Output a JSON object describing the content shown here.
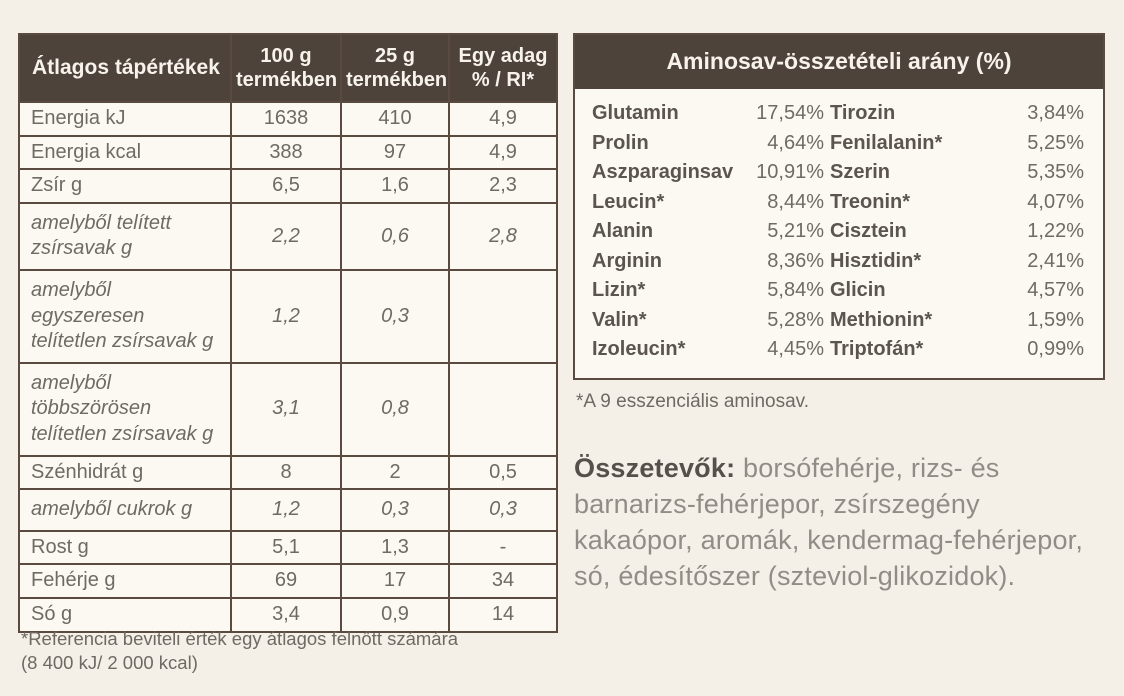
{
  "colors": {
    "page_background": "#f5f0e7",
    "header_brown": "#4e433b",
    "border_brown": "#5a4a40",
    "cell_background": "#fcf9f3",
    "text_gray": "#6f6a63",
    "header_text": "#f7f3ec"
  },
  "nutrition_table": {
    "header": {
      "title": "Átlagos tápértékek",
      "columns": [
        "100 g\ntermékben",
        "25 g\ntermékben",
        "Egy adag\n% / RI*"
      ]
    },
    "rows": [
      {
        "label": "Energia kJ",
        "values": [
          "1638",
          "410",
          "4,9"
        ],
        "italic": false
      },
      {
        "label": "Energia kcal",
        "values": [
          "388",
          "97",
          "4,9"
        ],
        "italic": false
      },
      {
        "label": "Zsír g",
        "values": [
          "6,5",
          "1,6",
          "2,3"
        ],
        "italic": false
      },
      {
        "label": "amelyből telített\nzsírsavak g",
        "values": [
          "2,2",
          "0,6",
          "2,8"
        ],
        "italic": true
      },
      {
        "label": "amelyből egyszeresen\ntelítetlen zsírsavak g",
        "values": [
          "1,2",
          "0,3",
          ""
        ],
        "italic": true
      },
      {
        "label": "amelyből\ntöbbszörösen\ntelítetlen zsírsavak g",
        "values": [
          "3,1",
          "0,8",
          ""
        ],
        "italic": true
      },
      {
        "label": "Szénhidrát g",
        "values": [
          "8",
          "2",
          "0,5"
        ],
        "italic": false
      },
      {
        "label": "amelyből cukrok g",
        "values": [
          "1,2",
          "0,3",
          "0,3"
        ],
        "italic": true
      },
      {
        "label": "Rost g",
        "values": [
          "5,1",
          "1,3",
          "-"
        ],
        "italic": false
      },
      {
        "label": "Fehérje g",
        "values": [
          "69",
          "17",
          "34"
        ],
        "italic": false
      },
      {
        "label": "Só g",
        "values": [
          "3,4",
          "0,9",
          "14"
        ],
        "italic": false
      }
    ],
    "footnote_line1": "*Referencia beviteli érték egy átlagos felnőtt számára",
    "footnote_line2": "(8 400 kJ/ 2 000 kcal)"
  },
  "amino_table": {
    "title": "Aminosav-összetételi arány (%)",
    "left_rows": [
      {
        "name": "Glutamin",
        "value": "17,54%"
      },
      {
        "name": "Prolin",
        "value": "4,64%"
      },
      {
        "name": "Aszparaginsav",
        "value": "10,91%"
      },
      {
        "name": "Leucin*",
        "value": "8,44%"
      },
      {
        "name": "Alanin",
        "value": "5,21%"
      },
      {
        "name": "Arginin",
        "value": "8,36%"
      },
      {
        "name": "Lizin*",
        "value": "5,84%"
      },
      {
        "name": "Valin*",
        "value": "5,28%"
      },
      {
        "name": "Izoleucin*",
        "value": "4,45%"
      }
    ],
    "right_rows": [
      {
        "name": "Tirozin",
        "value": "3,84%"
      },
      {
        "name": "Fenilalanin*",
        "value": "5,25%"
      },
      {
        "name": "Szerin",
        "value": "5,35%"
      },
      {
        "name": "Treonin*",
        "value": "4,07%"
      },
      {
        "name": "Cisztein",
        "value": "1,22%"
      },
      {
        "name": "Hisztidin*",
        "value": "2,41%"
      },
      {
        "name": "Glicin",
        "value": "4,57%"
      },
      {
        "name": "Methionin*",
        "value": "1,59%"
      },
      {
        "name": "Triptofán*",
        "value": "0,99%"
      }
    ],
    "footnote": "*A 9 esszenciális aminosav."
  },
  "ingredients": {
    "label": "Összetevők:",
    "text": " borsófehérje, rizs- és barnarizs-fehérjepor, zsírszegény kakaópor, aromák, kendermag-fehérjepor, só, édesítőszer (szteviol-glikozidok)."
  }
}
